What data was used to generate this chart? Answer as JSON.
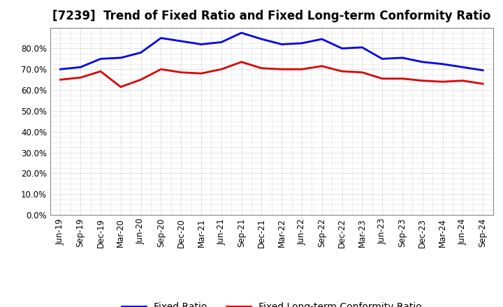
{
  "title": "[7239]  Trend of Fixed Ratio and Fixed Long-term Conformity Ratio",
  "x_labels": [
    "Jun-19",
    "Sep-19",
    "Dec-19",
    "Mar-20",
    "Jun-20",
    "Sep-20",
    "Dec-20",
    "Mar-21",
    "Jun-21",
    "Sep-21",
    "Dec-21",
    "Mar-22",
    "Jun-22",
    "Sep-22",
    "Dec-22",
    "Mar-23",
    "Jun-23",
    "Sep-23",
    "Dec-23",
    "Mar-24",
    "Jun-24",
    "Sep-24"
  ],
  "fixed_ratio": [
    70.0,
    71.0,
    75.0,
    75.5,
    78.0,
    85.0,
    83.5,
    82.0,
    83.0,
    87.5,
    84.5,
    82.0,
    82.5,
    84.5,
    80.0,
    80.5,
    75.0,
    75.5,
    73.5,
    72.5,
    71.0,
    69.5
  ],
  "fixed_lt_ratio": [
    65.0,
    66.0,
    69.0,
    61.5,
    65.0,
    70.0,
    68.5,
    68.0,
    70.0,
    73.5,
    70.5,
    70.0,
    70.0,
    71.5,
    69.0,
    68.5,
    65.5,
    65.5,
    64.5,
    64.0,
    64.5,
    63.0
  ],
  "fixed_ratio_color": "#0000EE",
  "fixed_lt_ratio_color": "#DD0000",
  "ylim": [
    0,
    90
  ],
  "ytick_vals": [
    0,
    10,
    20,
    30,
    40,
    50,
    60,
    70,
    80
  ],
  "ytick_labels": [
    "0.0%",
    "10.0%",
    "20.0%",
    "30.0%",
    "40.0%",
    "50.0%",
    "60.0%",
    "70.0%",
    "80.0%"
  ],
  "bg_color": "#FFFFFF",
  "plot_bg_color": "#FFFFFF",
  "grid_color": "#AAAAAA",
  "legend_fixed_ratio": "Fixed Ratio",
  "legend_fixed_lt_ratio": "Fixed Long-term Conformity Ratio",
  "title_fontsize": 12,
  "tick_fontsize": 8.5,
  "legend_fontsize": 10
}
